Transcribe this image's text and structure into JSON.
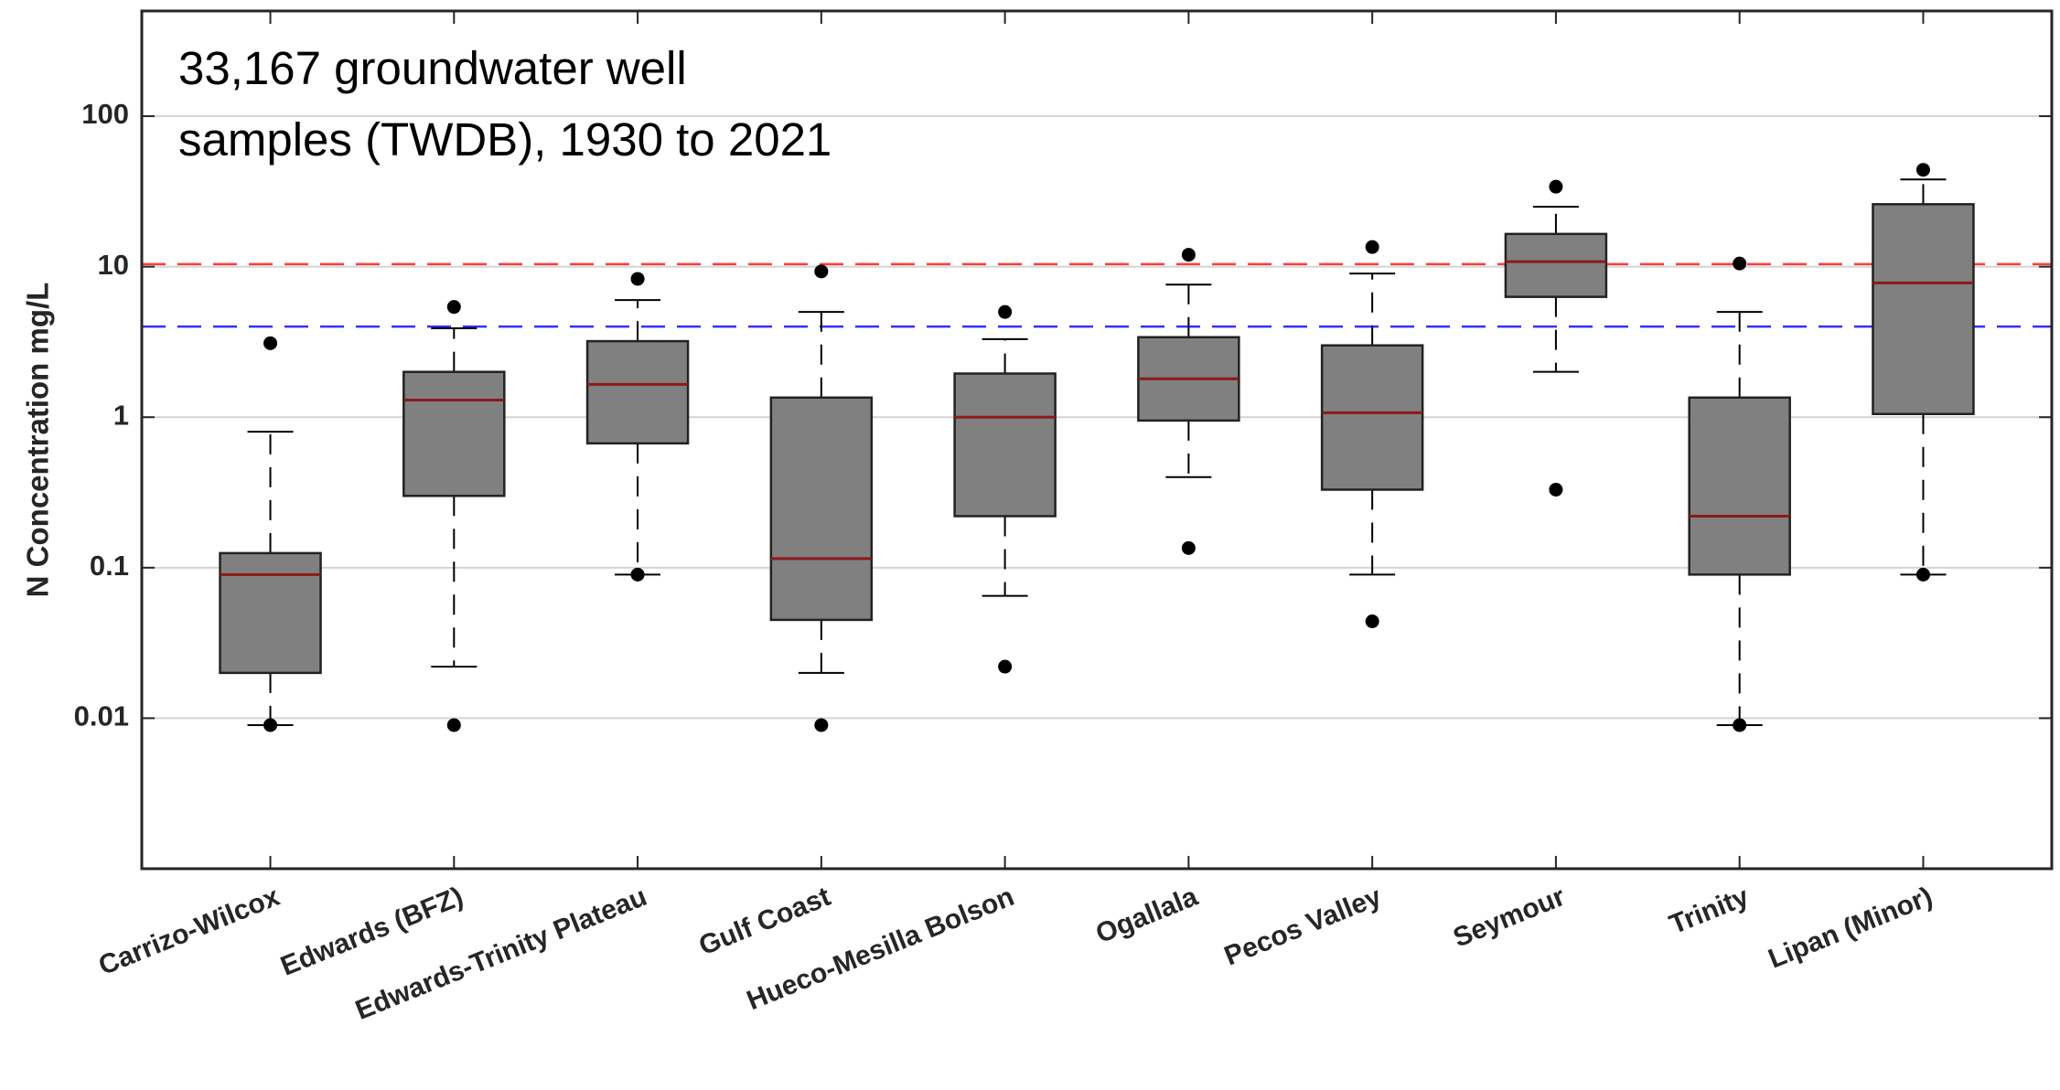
{
  "chart_data": {
    "type": "box",
    "annotation_lines": [
      "33,167 groundwater well",
      "samples (TWDB), 1930 to 2021"
    ],
    "ylabel": "N Concentration mg/L",
    "yscale": "log",
    "ylim": [
      0.001,
      500
    ],
    "yticks": [
      {
        "value": 0.01,
        "label": "0.01"
      },
      {
        "value": 0.1,
        "label": "0.1"
      },
      {
        "value": 1,
        "label": "1"
      },
      {
        "value": 10,
        "label": "10"
      },
      {
        "value": 100,
        "label": "100"
      }
    ],
    "grid": true,
    "reference_lines": [
      {
        "value": 10.4,
        "color": "#ff3b3b"
      },
      {
        "value": 4.0,
        "color": "#3030ff"
      }
    ],
    "categories": [
      "Carrizo-Wilcox",
      "Edwards (BFZ)",
      "Edwards-Trinity Plateau",
      "Gulf Coast",
      "Hueco-Mesilla Bolson",
      "Ogallala",
      "Pecos Valley",
      "Seymour",
      "Trinity",
      "Lipan (Minor)"
    ],
    "boxes": [
      {
        "whisker_low": 0.009,
        "q1": 0.02,
        "median": 0.09,
        "q3": 0.125,
        "whisker_high": 0.8,
        "outliers": [
          3.1,
          0.009
        ]
      },
      {
        "whisker_low": 0.022,
        "q1": 0.3,
        "median": 1.3,
        "q3": 2.0,
        "whisker_high": 3.9,
        "outliers": [
          5.4,
          0.009
        ]
      },
      {
        "whisker_low": 0.09,
        "q1": 0.67,
        "median": 1.65,
        "q3": 3.2,
        "whisker_high": 6.0,
        "outliers": [
          8.3,
          0.09
        ]
      },
      {
        "whisker_low": 0.02,
        "q1": 0.045,
        "median": 0.115,
        "q3": 1.35,
        "whisker_high": 5.0,
        "outliers": [
          9.3,
          0.009
        ]
      },
      {
        "whisker_low": 0.065,
        "q1": 0.22,
        "median": 1.0,
        "q3": 1.95,
        "whisker_high": 3.3,
        "outliers": [
          5.0,
          0.022
        ]
      },
      {
        "whisker_low": 0.4,
        "q1": 0.95,
        "median": 1.8,
        "q3": 3.4,
        "whisker_high": 7.6,
        "outliers": [
          12.0,
          0.135
        ]
      },
      {
        "whisker_low": 0.09,
        "q1": 0.33,
        "median": 1.07,
        "q3": 3.0,
        "whisker_high": 9.0,
        "outliers": [
          13.5,
          0.044
        ]
      },
      {
        "whisker_low": 2.0,
        "q1": 6.3,
        "median": 10.8,
        "q3": 16.5,
        "whisker_high": 25.0,
        "outliers": [
          34.0,
          0.33
        ]
      },
      {
        "whisker_low": 0.009,
        "q1": 0.09,
        "median": 0.22,
        "q3": 1.35,
        "whisker_high": 5.0,
        "outliers": [
          10.5,
          0.009
        ]
      },
      {
        "whisker_low": 0.09,
        "q1": 1.05,
        "median": 7.8,
        "q3": 26.0,
        "whisker_high": 38.0,
        "outliers": [
          44.0,
          0.09
        ]
      }
    ],
    "colors": {
      "box_fill": "#808080",
      "median": "#8b1a1a",
      "grid": "#d4d4d4",
      "axis": "#262626"
    }
  }
}
